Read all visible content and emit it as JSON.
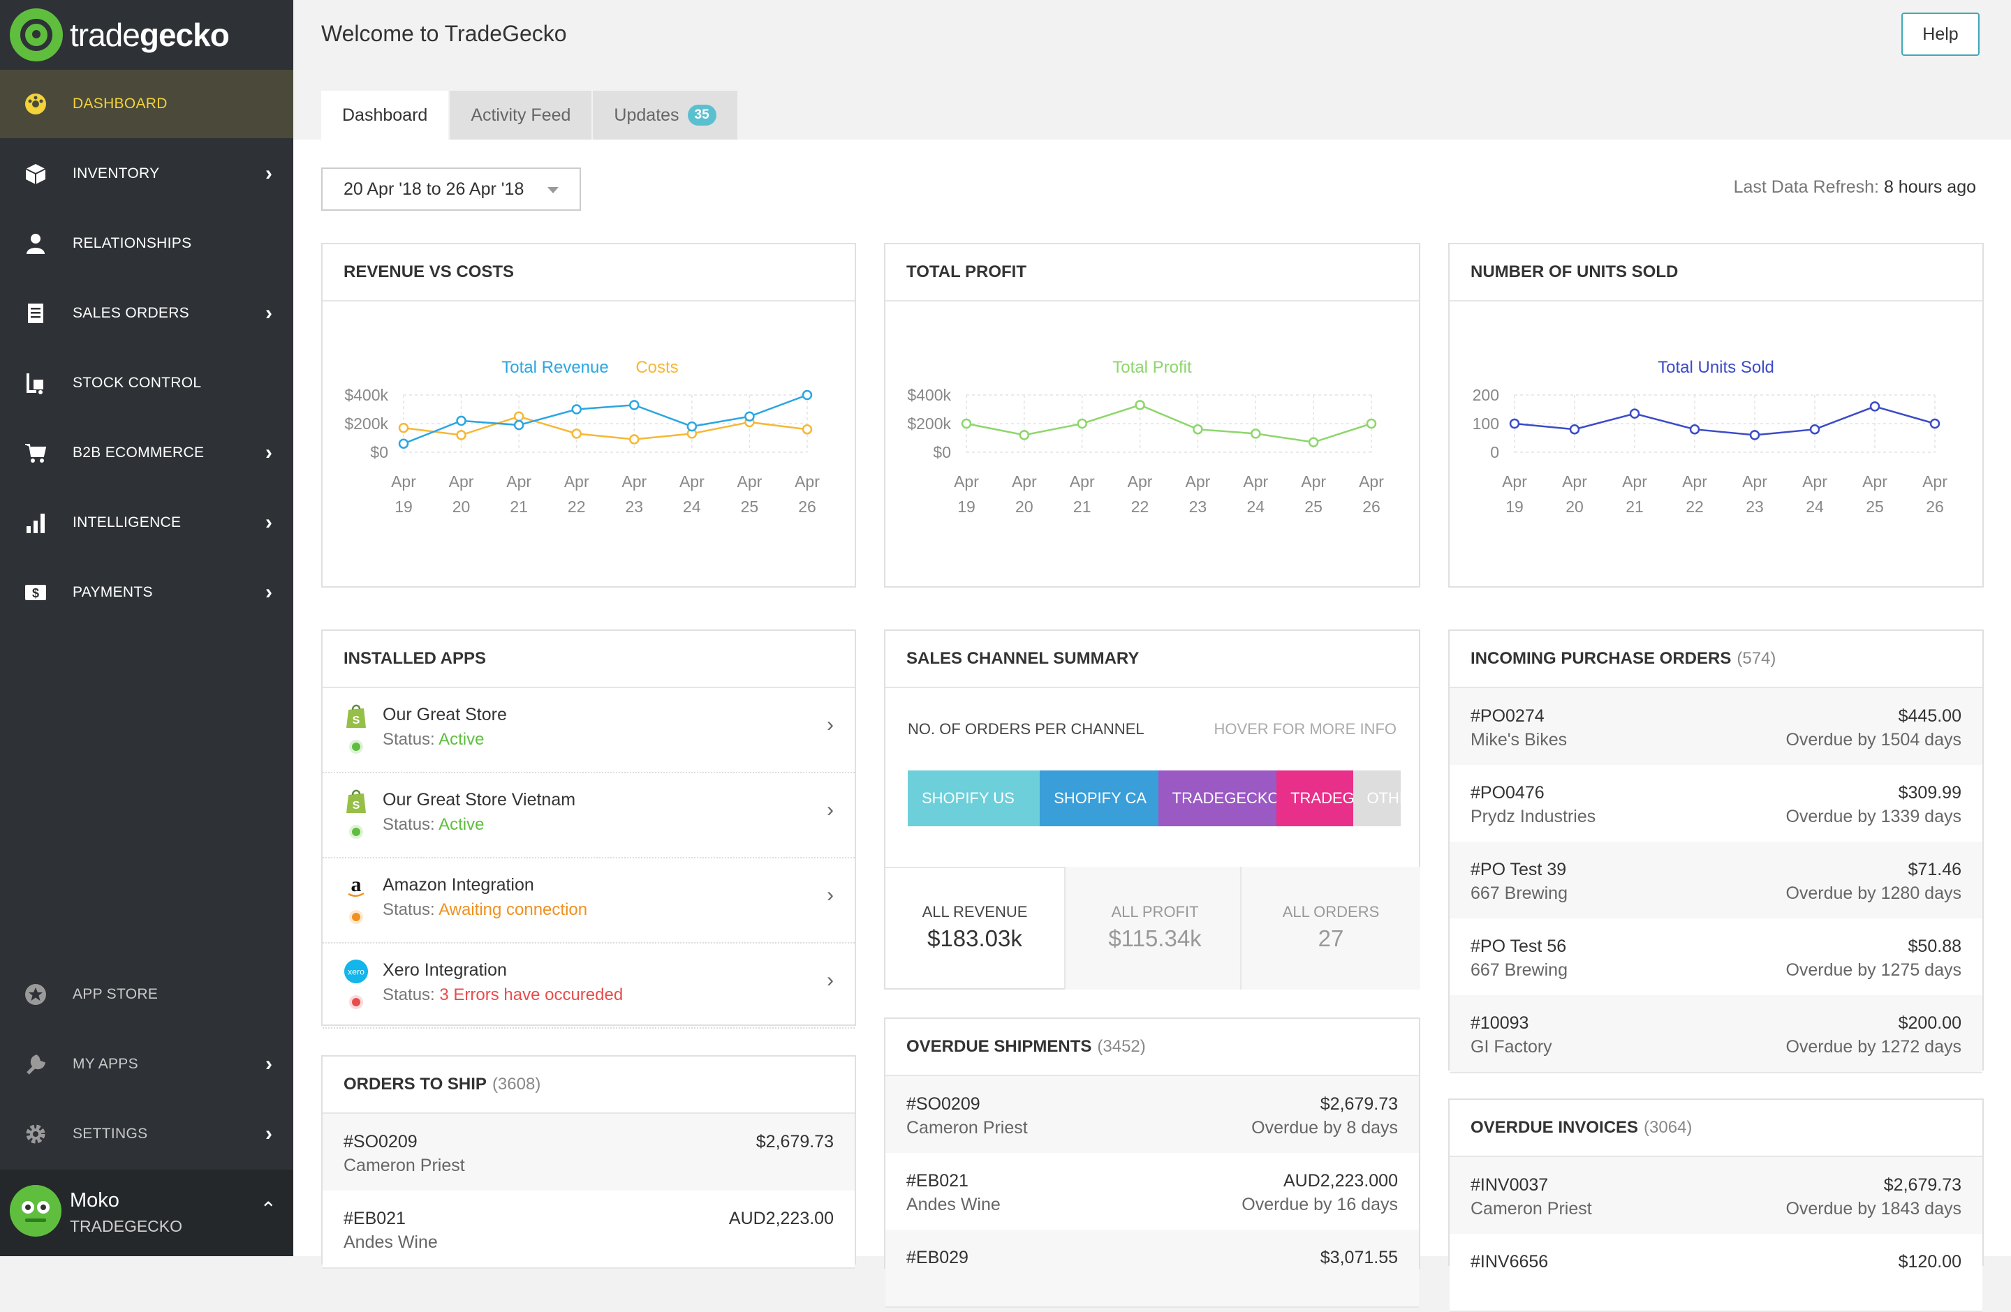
{
  "brand": {
    "logo_light": "trade",
    "logo_bold": "gecko",
    "logo_text": "tradegecko"
  },
  "sidebar": {
    "items": [
      {
        "label": "DASHBOARD",
        "icon": "dashboard-icon",
        "chevron": false,
        "active": true
      },
      {
        "label": "INVENTORY",
        "icon": "box-icon",
        "chevron": true
      },
      {
        "label": "RELATIONSHIPS",
        "icon": "person-icon",
        "chevron": false
      },
      {
        "label": "SALES ORDERS",
        "icon": "document-icon",
        "chevron": true
      },
      {
        "label": "STOCK CONTROL",
        "icon": "forklift-icon",
        "chevron": false
      },
      {
        "label": "B2B ECOMMERCE",
        "icon": "cart-icon",
        "chevron": true
      },
      {
        "label": "INTELLIGENCE",
        "icon": "bar-chart-icon",
        "chevron": true
      },
      {
        "label": "PAYMENTS",
        "icon": "dollar-icon",
        "chevron": true
      }
    ],
    "bottom_items": [
      {
        "label": "APP STORE",
        "icon": "star-icon",
        "chevron": false
      },
      {
        "label": "MY APPS",
        "icon": "wrench-icon",
        "chevron": true
      },
      {
        "label": "SETTINGS",
        "icon": "gear-icon",
        "chevron": true
      }
    ],
    "chevron": "›",
    "user": {
      "name": "Moko",
      "org": "TRADEGECKO",
      "chevron": "⌃"
    }
  },
  "header": {
    "welcome": "Welcome to TradeGecko",
    "help": "Help"
  },
  "tabs": [
    {
      "label": "Dashboard",
      "active": true
    },
    {
      "label": "Activity Feed"
    },
    {
      "label": "Updates",
      "badge": "35"
    }
  ],
  "date_range": "20 Apr '18 to 26 Apr '18",
  "refresh": {
    "label": "Last Data Refresh:",
    "value": "8 hours ago"
  },
  "cards": {
    "revenue": {
      "title": "REVENUE VS COSTS"
    },
    "profit": {
      "title": "TOTAL PROFIT"
    },
    "units": {
      "title": "NUMBER OF UNITS SOLD"
    },
    "installed_apps": {
      "title": "INSTALLED APPS",
      "status_prefix": "Status:",
      "chevron": "›",
      "apps": [
        {
          "name": "Our Great Store",
          "status": "Active",
          "icon": "shopify-icon",
          "color": "#5fbe3e"
        },
        {
          "name": "Our Great Store Vietnam",
          "status": "Active",
          "icon": "shopify-icon",
          "color": "#5fbe3e"
        },
        {
          "name": "Amazon Integration",
          "status": "Awaiting connection",
          "icon": "amazon-icon",
          "color": "#f0901f"
        },
        {
          "name": "Xero Integration",
          "status": "3 Errors have occureded",
          "icon": "xero-icon",
          "color": "#e84c4c"
        }
      ]
    },
    "sales_channel": {
      "title": "SALES CHANNEL SUMMARY",
      "label": "NO. OF ORDERS PER CHANNEL",
      "hover": "HOVER FOR MORE INFO",
      "segments": [
        {
          "label": "SHOPIFY US",
          "color": "#6ccfd9",
          "share": 0.268
        },
        {
          "label": "SHOPIFY CA",
          "color": "#3a9ed8",
          "share": 0.24
        },
        {
          "label": "TRADEGECKO",
          "color": "#9b59c4",
          "share": 0.24
        },
        {
          "label": "TRADEGECKO",
          "color": "#e8308a",
          "share": 0.155
        },
        {
          "label": "OTHER",
          "color": "#dddddd",
          "share": 0.097
        }
      ],
      "totals": [
        {
          "label": "ALL REVENUE",
          "value": "$183.03k"
        },
        {
          "label": "ALL PROFIT",
          "value": "$115.34k"
        },
        {
          "label": "ALL ORDERS",
          "value": "27"
        }
      ]
    },
    "purchase_orders": {
      "title": "INCOMING PURCHASE ORDERS",
      "count": "(574)",
      "rows": [
        {
          "id": "#PO0274",
          "name": "Mike's Bikes",
          "amount": "$445.00",
          "status": "Overdue by 1504 days"
        },
        {
          "id": "#PO0476",
          "name": "Prydz Industries",
          "amount": "$309.99",
          "status": "Overdue by 1339 days"
        },
        {
          "id": "#PO Test 39",
          "name": "667 Brewing",
          "amount": "$71.46",
          "status": "Overdue by 1280 days"
        },
        {
          "id": "#PO Test 56",
          "name": "667 Brewing",
          "amount": "$50.88",
          "status": "Overdue by 1275 days"
        },
        {
          "id": "#10093",
          "name": "GI Factory",
          "amount": "$200.00",
          "status": "Overdue by 1272 days"
        }
      ]
    },
    "orders_to_ship": {
      "title": "ORDERS TO SHIP",
      "count": "(3608)",
      "rows": [
        {
          "id": "#SO0209",
          "name": "Cameron Priest",
          "amount": "$2,679.73"
        },
        {
          "id": "#EB021",
          "name": "Andes Wine",
          "amount": "AUD2,223.00"
        }
      ]
    },
    "overdue_shipments": {
      "title": "OVERDUE SHIPMENTS",
      "count": "(3452)",
      "rows": [
        {
          "id": "#SO0209",
          "name": "Cameron Priest",
          "amount": "$2,679.73",
          "status": "Overdue by  8 days"
        },
        {
          "id": "#EB021",
          "name": "Andes Wine",
          "amount": "AUD2,223.000",
          "status": "Overdue by 16 days"
        },
        {
          "id": "#EB029",
          "name": "",
          "amount": "$3,071.55",
          "status": ""
        }
      ]
    },
    "overdue_invoices": {
      "title": "OVERDUE INVOICES",
      "count": "(3064)",
      "rows": [
        {
          "id": "#INV0037",
          "name": "Cameron Priest",
          "amount": "$2,679.73",
          "status": "Overdue by 1843 days"
        },
        {
          "id": "#INV6656",
          "name": "",
          "amount": "$120.00",
          "status": ""
        }
      ]
    }
  },
  "chart_data": [
    {
      "type": "line",
      "title": "REVENUE VS COSTS",
      "categories": [
        "Apr 19",
        "Apr 20",
        "Apr 21",
        "Apr 22",
        "Apr 23",
        "Apr 24",
        "Apr 25",
        "Apr 26"
      ],
      "ylim": [
        0,
        400000
      ],
      "yticks": [
        "$0",
        "$200k",
        "$400k"
      ],
      "series": [
        {
          "name": "Total Revenue",
          "color": "#29a6e2",
          "values": [
            60000,
            220000,
            190000,
            300000,
            330000,
            180000,
            250000,
            400000
          ]
        },
        {
          "name": "Costs",
          "color": "#f7b733",
          "values": [
            170000,
            120000,
            250000,
            130000,
            90000,
            130000,
            210000,
            160000
          ]
        }
      ]
    },
    {
      "type": "line",
      "title": "TOTAL PROFIT",
      "categories": [
        "Apr 19",
        "Apr 20",
        "Apr 21",
        "Apr 22",
        "Apr 23",
        "Apr 24",
        "Apr 25",
        "Apr 26"
      ],
      "ylim": [
        0,
        400000
      ],
      "yticks": [
        "$0",
        "$200k",
        "$400k"
      ],
      "series": [
        {
          "name": "Total Profit",
          "color": "#8dd66c",
          "values": [
            200000,
            120000,
            200000,
            330000,
            160000,
            130000,
            70000,
            200000
          ]
        }
      ]
    },
    {
      "type": "line",
      "title": "NUMBER OF UNITS SOLD",
      "categories": [
        "Apr 19",
        "Apr 20",
        "Apr 21",
        "Apr 22",
        "Apr 23",
        "Apr 24",
        "Apr 25",
        "Apr 26"
      ],
      "ylim": [
        0,
        200
      ],
      "yticks": [
        "0",
        "100",
        "200"
      ],
      "series": [
        {
          "name": "Total Units Sold",
          "color": "#3b4bc7",
          "values": [
            100,
            80,
            135,
            80,
            60,
            80,
            160,
            100
          ]
        }
      ]
    }
  ]
}
